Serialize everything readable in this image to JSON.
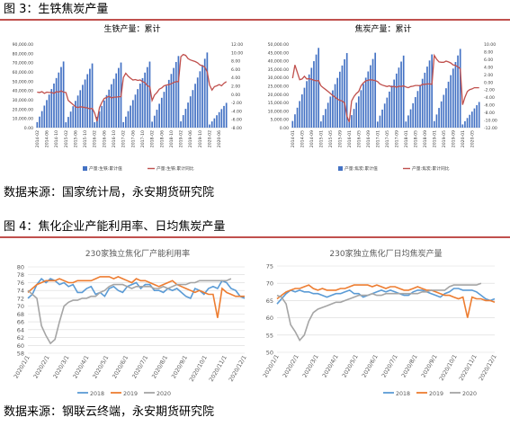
{
  "figure3": {
    "title": "图 3：生铁焦炭产量",
    "source": "数据来源：国家统计局，永安期货研究院"
  },
  "figure4": {
    "title": "图 4：焦化企业产能利用率、日均焦炭产量",
    "source": "数据来源：钢联云终端，永安期货研究院"
  },
  "colors": {
    "bar": "#4472c4",
    "redline": "#c0504d",
    "s2018": "#5b9bd5",
    "s2019": "#ed7d31",
    "s2020": "#a5a5a5",
    "rule": "#c0504d"
  },
  "chart_data": [
    {
      "type": "bar+line",
      "title": "生铁产量：累计",
      "left_ticks": [
        "90,000.00",
        "80,000.00",
        "70,000.00",
        "60,000.00",
        "50,000.00",
        "40,000.00",
        "30,000.00",
        "20,000.00",
        "10,000.00",
        "0.00"
      ],
      "right_ticks": [
        "12.00",
        "10.00",
        "8.00",
        "6.00",
        "4.00",
        "2.00",
        "0.00",
        "-2.00",
        "-4.00",
        "-6.00",
        "-8.00"
      ],
      "ylim_left": [
        0,
        90000
      ],
      "ylim_right": [
        -8,
        12
      ],
      "x_ticks": [
        "2014-02",
        "2014-06",
        "2014-10",
        "2015-02",
        "2015-06",
        "2015-10",
        "2016-02",
        "2016-06",
        "2016-10",
        "2017-02",
        "2017-06",
        "2017-10",
        "2018-02",
        "2018-06",
        "2018-10",
        "2019-02",
        "2019-06",
        "2019-10",
        "2020-02",
        "2020-06"
      ],
      "x_start": "2014-01",
      "year_totals": [
        71200,
        69100,
        70100,
        71100,
        77100,
        80900,
        40000
      ],
      "growth": [
        0.5,
        0.4,
        0.6,
        0.2,
        0.5,
        0.4,
        0.4,
        0.2,
        0.6,
        0.5,
        0.8,
        0.5,
        0.4,
        -1.5,
        -2.0,
        -2.5,
        -3.0,
        -3.2,
        -3.0,
        -3.1,
        -3.2,
        -3.3,
        -3.5,
        -3.4,
        -4.5,
        -6.5,
        -3.2,
        -2.0,
        -1.0,
        -0.8,
        -0.5,
        -0.9,
        -0.7,
        -0.7,
        -0.6,
        -0.6,
        4.0,
        5.0,
        4.3,
        3.8,
        3.4,
        3.5,
        3.3,
        3.4,
        3.0,
        2.8,
        2.0,
        1.8,
        -1.5,
        -0.2,
        0.4,
        1.2,
        1.5,
        2.0,
        2.2,
        2.3,
        2.5,
        2.8,
        3.0,
        3.0,
        9.0,
        9.5,
        9.3,
        8.5,
        8.2,
        8.0,
        7.8,
        7.5,
        7.0,
        6.8,
        6.5,
        5.3,
        2.2,
        1.0,
        1.8,
        2.0,
        2.3,
        2.0,
        2.6,
        3.0
      ],
      "legend": [
        "产量:生铁:累计值",
        "产量:生铁:累计同比"
      ]
    },
    {
      "type": "bar+line",
      "title": "焦炭产量：累计",
      "left_ticks": [
        "50,000.00",
        "45,000.00",
        "40,000.00",
        "35,000.00",
        "30,000.00",
        "25,000.00",
        "20,000.00",
        "15,000.00",
        "10,000.00",
        "5,000.00",
        "0.00"
      ],
      "right_ticks": [
        "10.00",
        "8.00",
        "6.00",
        "4.00",
        "2.00",
        "0.00",
        "-2.00",
        "-4.00",
        "-6.00",
        "-8.00",
        "-10.00",
        "-12.00"
      ],
      "ylim_left": [
        0,
        50000
      ],
      "ylim_right": [
        -12,
        10
      ],
      "x_ticks": [
        "2014-01",
        "2014-05",
        "2014-09",
        "2015-01",
        "2015-05",
        "2015-09",
        "2016-01",
        "2016-05",
        "2016-09",
        "2017-01",
        "2017-05",
        "2017-09",
        "2018-01",
        "2018-05",
        "2018-09",
        "2019-01",
        "2019-05",
        "2019-09",
        "2020-01",
        "2020-05"
      ],
      "x_start": "2014-01",
      "year_totals": [
        47700,
        44600,
        44800,
        43100,
        43800,
        47100,
        23000
      ],
      "growth": [
        1.0,
        4.5,
        2.5,
        0.6,
        0.8,
        1.5,
        0.8,
        0.9,
        0.7,
        0.5,
        0.3,
        0.4,
        -1.0,
        -1.5,
        -2.0,
        -2.5,
        -3.0,
        -3.5,
        -4.0,
        -4.5,
        -4.8,
        -5.0,
        -5.5,
        -9.0,
        -10.5,
        -5.0,
        -3.8,
        -3.0,
        -2.5,
        -1.0,
        -0.2,
        0.3,
        0.5,
        0.6,
        0.5,
        0.4,
        0.1,
        -0.5,
        -0.8,
        -1.0,
        -1.2,
        -1.0,
        -1.3,
        -1.1,
        -1.4,
        -1.1,
        -1.2,
        -1.0,
        -1.3,
        -1.5,
        -1.2,
        -1.1,
        -0.9,
        -0.9,
        -1.0,
        -0.6,
        -0.6,
        -0.5,
        -0.5,
        -0.6,
        7.0,
        6.0,
        5.3,
        5.2,
        5.2,
        5.5,
        5.3,
        5.0,
        4.5,
        4.4,
        4.0,
        3.5,
        -6.0,
        -4.0,
        -2.5,
        -2.0,
        -1.8,
        -1.5,
        -1.5,
        -1.5
      ],
      "legend": [
        "产量:焦炭:累计值",
        "产量:焦炭:累计同比"
      ]
    },
    {
      "type": "line",
      "title": "230家独立焦化厂产能利用率",
      "ylim": [
        58,
        80
      ],
      "y_ticks": [
        "80",
        "78",
        "76",
        "74",
        "72",
        "70",
        "68",
        "66",
        "64",
        "62",
        "60",
        "58"
      ],
      "x_ticks": [
        "2020/1/1",
        "2020/2/1",
        "2020/3/1",
        "2020/4/1",
        "2020/5/1",
        "2020/6/1",
        "2020/7/1",
        "2020/8/1",
        "2020/9/1",
        "2020/10/1",
        "2020/11/1",
        "2020/12/1"
      ],
      "series": [
        {
          "name": "2018",
          "values": [
            72,
            73,
            75.5,
            77,
            76,
            77,
            76.5,
            75.5,
            76,
            75,
            75.5,
            73.5,
            73.5,
            74.5,
            75,
            73,
            73.5,
            72.5,
            74.5,
            75,
            74,
            73.5,
            75,
            75.5,
            76,
            74.5,
            75.5,
            75.5,
            74,
            74,
            73.5,
            74.5,
            74,
            74.5,
            73.5,
            72.5,
            72,
            74.5,
            74,
            73,
            74.5,
            75,
            74.5,
            76.5,
            76,
            74.5,
            74,
            72.5,
            72
          ]
        },
        {
          "name": "2019",
          "values": [
            73.5,
            74.5,
            75.5,
            76,
            76.5,
            76.5,
            76.5,
            77,
            76.5,
            76,
            76,
            76.5,
            76.5,
            76.5,
            76.5,
            77,
            77.5,
            77.5,
            77.5,
            77,
            77.5,
            77,
            76.5,
            76,
            77,
            76.5,
            76.5,
            76,
            75.5,
            75,
            75.5,
            76,
            76.5,
            75.5,
            75,
            74.5,
            74,
            73.5,
            74,
            73.5,
            73,
            73,
            67,
            74.5,
            73.5,
            73,
            72.5,
            72.5,
            72.5
          ]
        },
        {
          "name": "2020",
          "values": [
            74,
            73,
            72,
            65,
            62.5,
            60.5,
            61.5,
            66,
            70,
            71,
            71.5,
            71.5,
            72,
            72,
            72.5,
            72.5,
            73.5,
            74,
            75,
            75.5,
            75.5,
            75.5,
            75,
            74.5,
            75,
            75,
            75,
            75,
            74.5,
            74.5,
            75,
            74.5,
            75,
            75.5,
            75.5,
            75.5,
            76,
            76,
            76.5,
            76.5,
            76.5,
            76.5,
            76.5,
            76.5,
            76.5,
            77
          ]
        }
      ],
      "legend": [
        "2018",
        "2019",
        "2020"
      ]
    },
    {
      "type": "line",
      "title": "230家独立焦化厂日均焦炭产量",
      "ylim": [
        50,
        75
      ],
      "y_ticks": [
        "75",
        "70",
        "65",
        "60",
        "55",
        "50"
      ],
      "x_ticks": [
        "2020/1/1",
        "2020/2/1",
        "2020/3/1",
        "2020/4/1",
        "2020/5/1",
        "2020/6/1",
        "2020/7/1",
        "2020/8/1",
        "2020/9/1",
        "2020/10/1",
        "2020/11/1",
        "2020/12/1"
      ],
      "series": [
        {
          "name": "2018",
          "values": [
            64,
            65.5,
            67,
            68,
            67.5,
            68,
            67.5,
            67.5,
            67,
            67,
            66.5,
            66,
            66.5,
            67,
            67,
            67.5,
            68,
            67,
            67,
            66,
            66.5,
            67,
            67.5,
            68,
            67.5,
            68,
            67.5,
            67,
            66.5,
            66.5,
            67.5,
            68,
            68,
            67.5,
            67,
            66.5,
            66,
            67,
            67.5,
            68.5,
            68.5,
            68,
            68,
            68,
            67.5,
            66.5,
            65.5,
            65,
            65.5
          ]
        },
        {
          "name": "2019",
          "values": [
            65.5,
            66.5,
            67.5,
            68,
            68.5,
            68.5,
            69,
            69.5,
            68.5,
            68,
            68.5,
            68,
            68,
            68,
            68.5,
            68.5,
            69,
            69.5,
            69.5,
            69.5,
            69.5,
            69,
            69.5,
            69,
            68.5,
            69,
            69,
            68.5,
            68,
            68,
            68.5,
            69,
            68.5,
            68,
            68,
            67.5,
            67,
            66.5,
            66.5,
            66,
            65.5,
            66,
            60,
            66,
            65.5,
            65.5,
            65,
            65,
            64.5
          ]
        },
        {
          "name": "2020",
          "values": [
            66.5,
            66,
            64,
            58,
            56,
            53.5,
            55,
            59,
            61.5,
            62.5,
            63,
            63.5,
            64,
            64.5,
            64.5,
            65,
            65.5,
            66,
            66.5,
            66.5,
            66.5,
            67,
            66.5,
            66.5,
            67,
            67,
            67,
            67,
            67,
            67,
            67,
            67,
            67.5,
            67.5,
            68,
            68,
            68,
            68,
            69,
            69.5,
            69.5,
            69.5,
            69.5,
            69.5,
            69.5,
            70
          ]
        }
      ],
      "legend": [
        "2018",
        "2019",
        "2020"
      ]
    }
  ]
}
